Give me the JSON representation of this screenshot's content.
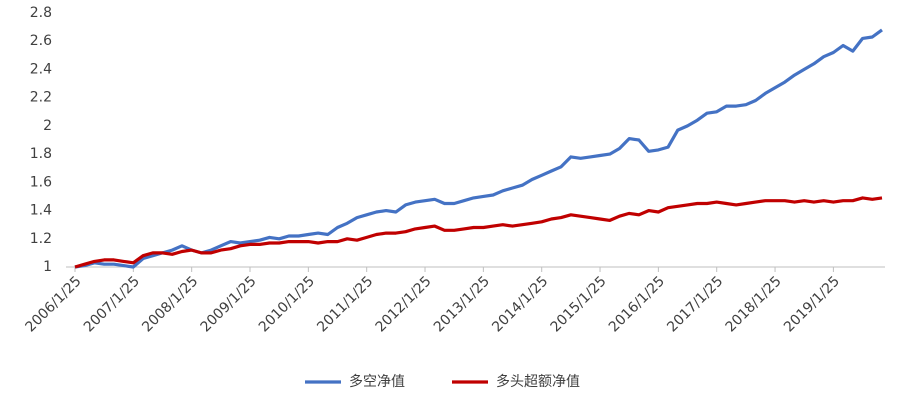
{
  "chart_data": {
    "type": "line",
    "categories": [
      "2006/1/25",
      null,
      null,
      null,
      null,
      null,
      "2007/1/25",
      null,
      null,
      null,
      null,
      null,
      "2008/1/25",
      null,
      null,
      null,
      null,
      null,
      "2009/1/25",
      null,
      null,
      null,
      null,
      null,
      "2010/1/25",
      null,
      null,
      null,
      null,
      null,
      "2011/1/25",
      null,
      null,
      null,
      null,
      null,
      "2012/1/25",
      null,
      null,
      null,
      null,
      null,
      "2013/1/25",
      null,
      null,
      null,
      null,
      null,
      "2014/1/25",
      null,
      null,
      null,
      null,
      null,
      "2015/1/25",
      null,
      null,
      null,
      null,
      null,
      "2016/1/25",
      null,
      null,
      null,
      null,
      null,
      "2017/1/25",
      null,
      null,
      null,
      null,
      null,
      "2018/1/25",
      null,
      null,
      null,
      null,
      null,
      "2019/1/25",
      null,
      null,
      null,
      null,
      null
    ],
    "series": [
      {
        "name": "多空净值",
        "color": "#4472c4",
        "values": [
          1.0,
          1.01,
          1.03,
          1.02,
          1.02,
          1.01,
          1.0,
          1.06,
          1.08,
          1.1,
          1.12,
          1.15,
          1.12,
          1.1,
          1.12,
          1.15,
          1.18,
          1.17,
          1.18,
          1.19,
          1.21,
          1.2,
          1.22,
          1.22,
          1.23,
          1.24,
          1.23,
          1.28,
          1.31,
          1.35,
          1.37,
          1.39,
          1.4,
          1.39,
          1.44,
          1.46,
          1.47,
          1.48,
          1.45,
          1.45,
          1.47,
          1.49,
          1.5,
          1.51,
          1.54,
          1.56,
          1.58,
          1.62,
          1.65,
          1.68,
          1.71,
          1.78,
          1.77,
          1.78,
          1.79,
          1.8,
          1.84,
          1.91,
          1.9,
          1.82,
          1.83,
          1.85,
          1.97,
          2.0,
          2.04,
          2.09,
          2.1,
          2.14,
          2.14,
          2.15,
          2.18,
          2.23,
          2.27,
          2.31,
          2.36,
          2.4,
          2.44,
          2.49,
          2.52,
          2.57,
          2.53,
          2.62,
          2.63,
          2.68
        ]
      },
      {
        "name": "多头超额净值",
        "color": "#c00000",
        "values": [
          1.0,
          1.02,
          1.04,
          1.05,
          1.05,
          1.04,
          1.03,
          1.08,
          1.1,
          1.1,
          1.09,
          1.11,
          1.12,
          1.1,
          1.1,
          1.12,
          1.13,
          1.15,
          1.16,
          1.16,
          1.17,
          1.17,
          1.18,
          1.18,
          1.18,
          1.17,
          1.18,
          1.18,
          1.2,
          1.19,
          1.21,
          1.23,
          1.24,
          1.24,
          1.25,
          1.27,
          1.28,
          1.29,
          1.26,
          1.26,
          1.27,
          1.28,
          1.28,
          1.29,
          1.3,
          1.29,
          1.3,
          1.31,
          1.32,
          1.34,
          1.35,
          1.37,
          1.36,
          1.35,
          1.34,
          1.33,
          1.36,
          1.38,
          1.37,
          1.4,
          1.39,
          1.42,
          1.43,
          1.44,
          1.45,
          1.45,
          1.46,
          1.45,
          1.44,
          1.45,
          1.46,
          1.47,
          1.47,
          1.47,
          1.46,
          1.47,
          1.46,
          1.47,
          1.46,
          1.47,
          1.47,
          1.49,
          1.48,
          1.49
        ]
      }
    ],
    "ylim": [
      1,
      2.8
    ],
    "yticks": [
      1,
      1.2,
      1.4,
      1.6,
      1.8,
      2,
      2.2,
      2.4,
      2.6,
      2.8
    ]
  }
}
